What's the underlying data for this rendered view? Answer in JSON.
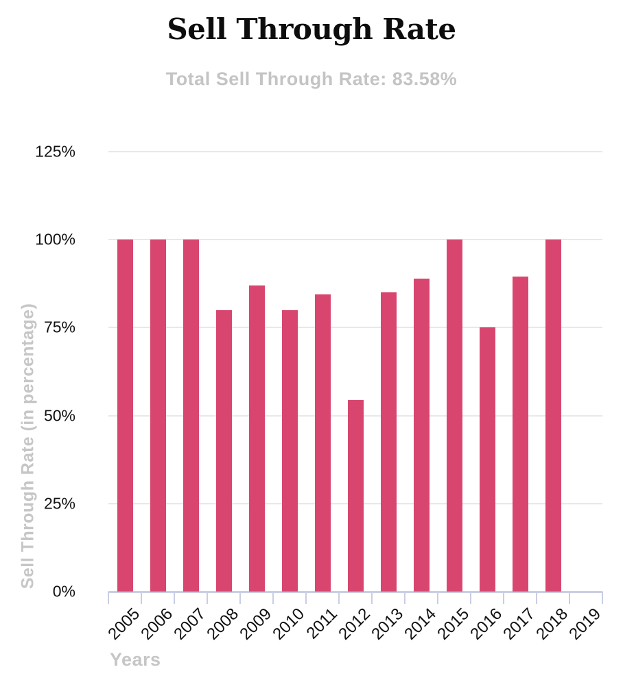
{
  "header": {
    "title": "Sell Through Rate",
    "subtitle": "Total Sell Through Rate: 83.58%"
  },
  "chart_data": {
    "type": "bar",
    "title": "Sell Through Rate",
    "subtitle": "Total Sell Through Rate: 83.58%",
    "xlabel": "Years",
    "ylabel": "Sell Through Rate (in percentage)",
    "categories": [
      "2005",
      "2006",
      "2007",
      "2008",
      "2009",
      "2010",
      "2011",
      "2012",
      "2013",
      "2014",
      "2015",
      "2016",
      "2017",
      "2018",
      "2019"
    ],
    "values": [
      100,
      100,
      100,
      80,
      87,
      80,
      84.5,
      54.5,
      85,
      89,
      100,
      75,
      89.5,
      100,
      0
    ],
    "y_ticks": [
      0,
      25,
      50,
      75,
      100,
      125
    ],
    "y_tick_labels": [
      "0%",
      "25%",
      "50%",
      "75%",
      "100%",
      "125%"
    ],
    "ylim": [
      0,
      125
    ],
    "grid": true,
    "legend": "none",
    "colors": {
      "bar": "#d8466f",
      "axis": "#c9cee4",
      "grid": "#e8e8e8",
      "muted_text": "#c6c6c6",
      "tick_text": "#111111"
    }
  }
}
